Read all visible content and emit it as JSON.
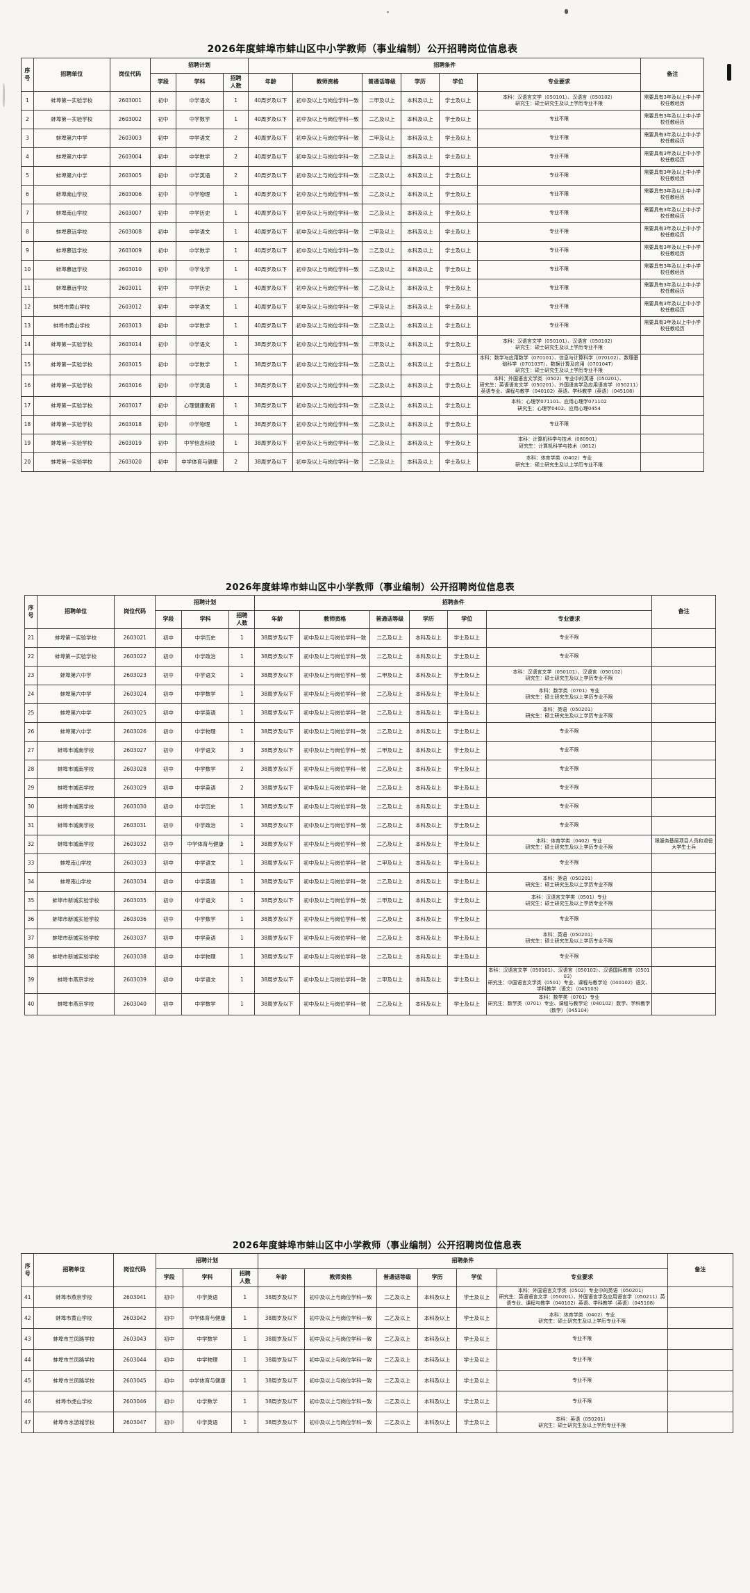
{
  "doc_title": "2026年度蚌埠市蚌山区中小学教师（事业编制）公开招聘岗位信息表",
  "headers": {
    "seq": "序号",
    "unit": "招聘单位",
    "code": "岗位代码",
    "plan": "招聘计划",
    "cond": "招聘条件",
    "stage": "学段",
    "subject": "学科",
    "count": "招聘\n人数",
    "age": "年龄",
    "cert": "教师资格",
    "pth": "普通话等级",
    "edu": "学历",
    "deg": "学位",
    "major": "专业要求",
    "remark": "备注"
  },
  "col_keys": [
    "seq",
    "unit",
    "code",
    "stage",
    "subject",
    "count",
    "age",
    "cert",
    "pth",
    "edu",
    "deg",
    "major",
    "remark"
  ],
  "tables": [
    {
      "rows": [
        [
          "1",
          "蚌埠第一实验学校",
          "2603001",
          "初中",
          "中学语文",
          "1",
          "40周岁及以下",
          "初中及以上与岗位学科一致",
          "二甲及以上",
          "本科及以上",
          "学士及以上",
          "本科：汉语言文学（050101）、汉语言（050102）\n研究生：硕士研究生及以上学历专业不限",
          "需要具有3年及以上中小学校任教经历"
        ],
        [
          "2",
          "蚌埠第一实验学校",
          "2603002",
          "初中",
          "中学数学",
          "1",
          "40周岁及以下",
          "初中及以上与岗位学科一致",
          "二乙及以上",
          "本科及以上",
          "学士及以上",
          "专业不限",
          "需要具有3年及以上中小学校任教经历"
        ],
        [
          "3",
          "蚌埠第六中学",
          "2603003",
          "初中",
          "中学语文",
          "2",
          "40周岁及以下",
          "初中及以上与岗位学科一致",
          "二甲及以上",
          "本科及以上",
          "学士及以上",
          "专业不限",
          "需要具有3年及以上中小学校任教经历"
        ],
        [
          "4",
          "蚌埠第六中学",
          "2603004",
          "初中",
          "中学数学",
          "2",
          "40周岁及以下",
          "初中及以上与岗位学科一致",
          "二乙及以上",
          "本科及以上",
          "学士及以上",
          "专业不限",
          "需要具有3年及以上中小学校任教经历"
        ],
        [
          "5",
          "蚌埠第六中学",
          "2603005",
          "初中",
          "中学英语",
          "2",
          "40周岁及以下",
          "初中及以上与岗位学科一致",
          "二乙及以上",
          "本科及以上",
          "学士及以上",
          "专业不限",
          "需要具有3年及以上中小学校任教经历"
        ],
        [
          "6",
          "蚌埠南山学校",
          "2603006",
          "初中",
          "中学物理",
          "1",
          "40周岁及以下",
          "初中及以上与岗位学科一致",
          "二乙及以上",
          "本科及以上",
          "学士及以上",
          "专业不限",
          "需要具有3年及以上中小学校任教经历"
        ],
        [
          "7",
          "蚌埠南山学校",
          "2603007",
          "初中",
          "中学历史",
          "1",
          "40周岁及以下",
          "初中及以上与岗位学科一致",
          "二乙及以上",
          "本科及以上",
          "学士及以上",
          "专业不限",
          "需要具有3年及以上中小学校任教经历"
        ],
        [
          "8",
          "蚌埠慕远学校",
          "2603008",
          "初中",
          "中学语文",
          "1",
          "40周岁及以下",
          "初中及以上与岗位学科一致",
          "二甲及以上",
          "本科及以上",
          "学士及以上",
          "专业不限",
          "需要具有3年及以上中小学校任教经历"
        ],
        [
          "9",
          "蚌埠慕远学校",
          "2603009",
          "初中",
          "中学数学",
          "1",
          "40周岁及以下",
          "初中及以上与岗位学科一致",
          "二乙及以上",
          "本科及以上",
          "学士及以上",
          "专业不限",
          "需要具有3年及以上中小学校任教经历"
        ],
        [
          "10",
          "蚌埠慕远学校",
          "2603010",
          "初中",
          "中学化学",
          "1",
          "40周岁及以下",
          "初中及以上与岗位学科一致",
          "二乙及以上",
          "本科及以上",
          "学士及以上",
          "专业不限",
          "需要具有3年及以上中小学校任教经历"
        ],
        [
          "11",
          "蚌埠慕远学校",
          "2603011",
          "初中",
          "中学历史",
          "1",
          "40周岁及以下",
          "初中及以上与岗位学科一致",
          "二乙及以上",
          "本科及以上",
          "学士及以上",
          "专业不限",
          "需要具有3年及以上中小学校任教经历"
        ],
        [
          "12",
          "蚌埠市黄山学校",
          "2603012",
          "初中",
          "中学语文",
          "1",
          "40周岁及以下",
          "初中及以上与岗位学科一致",
          "二甲及以上",
          "本科及以上",
          "学士及以上",
          "专业不限",
          "需要具有3年及以上中小学校任教经历"
        ],
        [
          "13",
          "蚌埠市黄山学校",
          "2603013",
          "初中",
          "中学数学",
          "1",
          "40周岁及以下",
          "初中及以上与岗位学科一致",
          "二乙及以上",
          "本科及以上",
          "学士及以上",
          "专业不限",
          "需要具有3年及以上中小学校任教经历"
        ],
        [
          "14",
          "蚌埠第一实验学校",
          "2603014",
          "初中",
          "中学语文",
          "1",
          "38周岁及以下",
          "初中及以上与岗位学科一致",
          "二甲及以上",
          "本科及以上",
          "学士及以上",
          "本科：汉语言文学（050101）、汉语言（050102）\n研究生：硕士研究生及以上学历专业不限",
          ""
        ],
        [
          "15",
          "蚌埠第一实验学校",
          "2603015",
          "初中",
          "中学数学",
          "1",
          "38周岁及以下",
          "初中及以上与岗位学科一致",
          "二乙及以上",
          "本科及以上",
          "学士及以上",
          "本科：数学与应用数学（070101）、信息与计算科学（070102）、数理基础科学（070103T）、数据计算及应用（070104T）\n研究生：硕士研究生及以上学历专业不限",
          ""
        ],
        [
          "16",
          "蚌埠第一实验学校",
          "2603016",
          "初中",
          "中学英语",
          "1",
          "38周岁及以下",
          "初中及以上与岗位学科一致",
          "二乙及以上",
          "本科及以上",
          "学士及以上",
          "本科：外国语言文学类（0502）专业中的英语（050201）、\n研究生：英语语言文学（050201）、外国语言学及应用语言学（050211）英语专业、课程与教学（040102）英语、学科教学（英语）（045108）",
          ""
        ],
        [
          "17",
          "蚌埠第一实验学校",
          "2603017",
          "初中",
          "心理健康教育",
          "1",
          "38周岁及以下",
          "初中及以上与岗位学科一致",
          "二乙及以上",
          "本科及以上",
          "学士及以上",
          "本科：心理学071101、应用心理学071102\n研究生：心理学0402、应用心理0454",
          ""
        ],
        [
          "18",
          "蚌埠第一实验学校",
          "2603018",
          "初中",
          "中学物理",
          "1",
          "38周岁及以下",
          "初中及以上与岗位学科一致",
          "二乙及以上",
          "本科及以上",
          "学士及以上",
          "专业不限",
          ""
        ],
        [
          "19",
          "蚌埠第一实验学校",
          "2603019",
          "初中",
          "中学信息科技",
          "1",
          "38周岁及以下",
          "初中及以上与岗位学科一致",
          "二乙及以上",
          "本科及以上",
          "学士及以上",
          "本科：计算机科学与技术（080901）\n研究生：计算机科学与技术（0812）",
          ""
        ],
        [
          "20",
          "蚌埠第一实验学校",
          "2603020",
          "初中",
          "中学体育与健康",
          "2",
          "38周岁及以下",
          "初中及以上与岗位学科一致",
          "二乙及以上",
          "本科及以上",
          "学士及以上",
          "本科：体育学类（0402）专业\n研究生：硕士研究生及以上学历专业不限",
          ""
        ]
      ]
    },
    {
      "rows": [
        [
          "21",
          "蚌埠第一实验学校",
          "2603021",
          "初中",
          "中学历史",
          "1",
          "38周岁及以下",
          "初中及以上与岗位学科一致",
          "二乙及以上",
          "本科及以上",
          "学士及以上",
          "专业不限",
          ""
        ],
        [
          "22",
          "蚌埠第一实验学校",
          "2603022",
          "初中",
          "中学政治",
          "1",
          "38周岁及以下",
          "初中及以上与岗位学科一致",
          "二乙及以上",
          "本科及以上",
          "学士及以上",
          "专业不限",
          ""
        ],
        [
          "23",
          "蚌埠第六中学",
          "2603023",
          "初中",
          "中学语文",
          "1",
          "38周岁及以下",
          "初中及以上与岗位学科一致",
          "二甲及以上",
          "本科及以上",
          "学士及以上",
          "本科：汉语言文学（050101）、汉语言（050102）\n研究生：硕士研究生及以上学历专业不限",
          ""
        ],
        [
          "24",
          "蚌埠第六中学",
          "2603024",
          "初中",
          "中学数学",
          "1",
          "38周岁及以下",
          "初中及以上与岗位学科一致",
          "二乙及以上",
          "本科及以上",
          "学士及以上",
          "本科：数学类（0701）专业\n研究生：硕士研究生及以上学历专业不限",
          ""
        ],
        [
          "25",
          "蚌埠第六中学",
          "2603025",
          "初中",
          "中学英语",
          "1",
          "38周岁及以下",
          "初中及以上与岗位学科一致",
          "二乙及以上",
          "本科及以上",
          "学士及以上",
          "本科：英语（050201）\n研究生：硕士研究生及以上学历专业不限",
          ""
        ],
        [
          "26",
          "蚌埠第六中学",
          "2603026",
          "初中",
          "中学物理",
          "1",
          "38周岁及以下",
          "初中及以上与岗位学科一致",
          "二乙及以上",
          "本科及以上",
          "学士及以上",
          "专业不限",
          ""
        ],
        [
          "27",
          "蚌埠市城南学校",
          "2603027",
          "初中",
          "中学语文",
          "3",
          "38周岁及以下",
          "初中及以上与岗位学科一致",
          "二甲及以上",
          "本科及以上",
          "学士及以上",
          "专业不限",
          ""
        ],
        [
          "28",
          "蚌埠市城南学校",
          "2603028",
          "初中",
          "中学数学",
          "2",
          "38周岁及以下",
          "初中及以上与岗位学科一致",
          "二乙及以上",
          "本科及以上",
          "学士及以上",
          "专业不限",
          ""
        ],
        [
          "29",
          "蚌埠市城南学校",
          "2603029",
          "初中",
          "中学英语",
          "2",
          "38周岁及以下",
          "初中及以上与岗位学科一致",
          "二乙及以上",
          "本科及以上",
          "学士及以上",
          "专业不限",
          ""
        ],
        [
          "30",
          "蚌埠市城南学校",
          "2603030",
          "初中",
          "中学历史",
          "1",
          "38周岁及以下",
          "初中及以上与岗位学科一致",
          "二乙及以上",
          "本科及以上",
          "学士及以上",
          "专业不限",
          ""
        ],
        [
          "31",
          "蚌埠市城南学校",
          "2603031",
          "初中",
          "中学政治",
          "1",
          "38周岁及以下",
          "初中及以上与岗位学科一致",
          "二乙及以上",
          "本科及以上",
          "学士及以上",
          "专业不限",
          ""
        ],
        [
          "32",
          "蚌埠市城南学校",
          "2603032",
          "初中",
          "中学体育与健康",
          "1",
          "38周岁及以下",
          "初中及以上与岗位学科一致",
          "二乙及以上",
          "本科及以上",
          "学士及以上",
          "本科：体育学类（0402）专业\n研究生：硕士研究生及以上学历专业不限",
          "限服务基层项目人员和退役大学生士兵"
        ],
        [
          "33",
          "蚌埠南山学校",
          "2603033",
          "初中",
          "中学语文",
          "1",
          "38周岁及以下",
          "初中及以上与岗位学科一致",
          "二甲及以上",
          "本科及以上",
          "学士及以上",
          "专业不限",
          ""
        ],
        [
          "34",
          "蚌埠南山学校",
          "2603034",
          "初中",
          "中学英语",
          "1",
          "38周岁及以下",
          "初中及以上与岗位学科一致",
          "二乙及以上",
          "本科及以上",
          "学士及以上",
          "本科：英语（050201）\n研究生：硕士研究生及以上学历专业不限",
          ""
        ],
        [
          "35",
          "蚌埠市新城实验学校",
          "2603035",
          "初中",
          "中学语文",
          "1",
          "38周岁及以下",
          "初中及以上与岗位学科一致",
          "二甲及以上",
          "本科及以上",
          "学士及以上",
          "本科：汉语言文学类（0501）专业\n研究生：硕士研究生及以上学历专业不限",
          ""
        ],
        [
          "36",
          "蚌埠市新城实验学校",
          "2603036",
          "初中",
          "中学数学",
          "1",
          "38周岁及以下",
          "初中及以上与岗位学科一致",
          "二乙及以上",
          "本科及以上",
          "学士及以上",
          "专业不限",
          ""
        ],
        [
          "37",
          "蚌埠市新城实验学校",
          "2603037",
          "初中",
          "中学英语",
          "1",
          "38周岁及以下",
          "初中及以上与岗位学科一致",
          "二乙及以上",
          "本科及以上",
          "学士及以上",
          "本科：英语（050201）\n研究生：硕士研究生及以上学历专业不限",
          ""
        ],
        [
          "38",
          "蚌埠市新城实验学校",
          "2603038",
          "初中",
          "中学物理",
          "1",
          "38周岁及以下",
          "初中及以上与岗位学科一致",
          "二乙及以上",
          "本科及以上",
          "学士及以上",
          "专业不限",
          ""
        ],
        [
          "39",
          "蚌埠市燕京学校",
          "2603039",
          "初中",
          "中学语文",
          "1",
          "38周岁及以下",
          "初中及以上与岗位学科一致",
          "二甲及以上",
          "本科及以上",
          "学士及以上",
          "本科：汉语言文学（050101）、汉语言（050102）、汉语国际教育（050103）\n研究生：中国语言文学类（0501）专业、课程与教学论（040102）语文、学科教学（语文）（045103）",
          ""
        ],
        [
          "40",
          "蚌埠市燕京学校",
          "2603040",
          "初中",
          "中学数学",
          "1",
          "38周岁及以下",
          "初中及以上与岗位学科一致",
          "二乙及以上",
          "本科及以上",
          "学士及以上",
          "本科：数学类（0701）专业\n研究生：数学类（0701）专业、课程与教学论（040102）数学、学科教学（数学）（045104）",
          ""
        ]
      ]
    },
    {
      "rows": [
        [
          "41",
          "蚌埠市燕京学校",
          "2603041",
          "初中",
          "中学英语",
          "1",
          "38周岁及以下",
          "初中及以上与岗位学科一致",
          "二乙及以上",
          "本科及以上",
          "学士及以上",
          "本科：外国语言文学类（0502）专业中的英语（050201）\n研究生：英语语言文学（050201）、外国语言学及应用语言学（050211）英语专业、课程与教学（040102）英语、学科教学（英语）（045108）",
          ""
        ],
        [
          "42",
          "蚌埠市黄山学校",
          "2603042",
          "初中",
          "中学体育与健康",
          "1",
          "38周岁及以下",
          "初中及以上与岗位学科一致",
          "二乙及以上",
          "本科及以上",
          "学士及以上",
          "本科：体育学类（0402）专业\n研究生：硕士研究生及以上学历专业不限",
          ""
        ],
        [
          "43",
          "蚌埠市兰凤路学校",
          "2603043",
          "初中",
          "中学数学",
          "1",
          "38周岁及以下",
          "初中及以上与岗位学科一致",
          "二乙及以上",
          "本科及以上",
          "学士及以上",
          "专业不限",
          ""
        ],
        [
          "44",
          "蚌埠市兰凤路学校",
          "2603044",
          "初中",
          "中学物理",
          "1",
          "38周岁及以下",
          "初中及以上与岗位学科一致",
          "二乙及以上",
          "本科及以上",
          "学士及以上",
          "专业不限",
          ""
        ],
        [
          "45",
          "蚌埠市兰凤路学校",
          "2603045",
          "初中",
          "中学体育与健康",
          "1",
          "38周岁及以下",
          "初中及以上与岗位学科一致",
          "二乙及以上",
          "本科及以上",
          "学士及以上",
          "专业不限",
          ""
        ],
        [
          "46",
          "蚌埠市虎山学校",
          "2603046",
          "初中",
          "中学数学",
          "1",
          "38周岁及以下",
          "初中及以上与岗位学科一致",
          "二乙及以上",
          "本科及以上",
          "学士及以上",
          "专业不限",
          ""
        ],
        [
          "47",
          "蚌埠市水游城学校",
          "2603047",
          "初中",
          "中学英语",
          "1",
          "38周岁及以下",
          "初中及以上与岗位学科一致",
          "二乙及以上",
          "本科及以上",
          "学士及以上",
          "本科：英语（050201）\n研究生：硕士研究生及以上学历专业不限",
          ""
        ]
      ]
    }
  ]
}
